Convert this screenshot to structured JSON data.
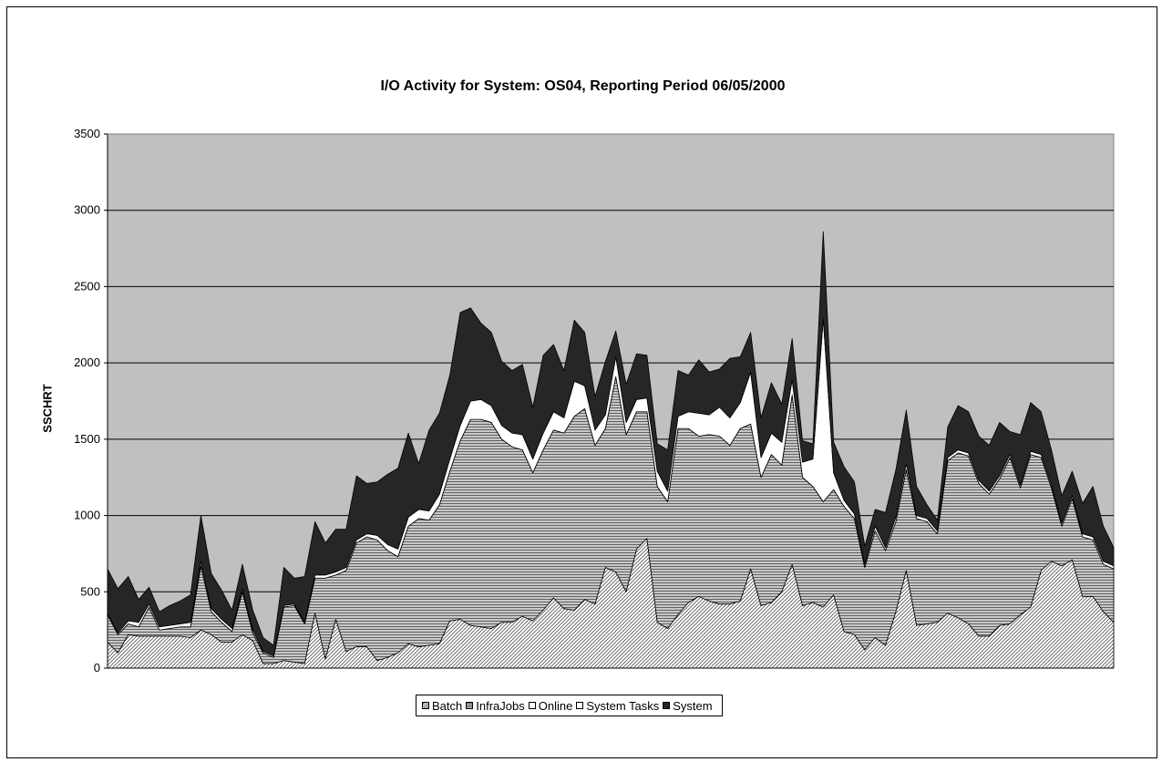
{
  "chart_data": {
    "type": "area",
    "stacked": true,
    "title": "I/O Activity for System: OS04, Reporting Period 06/05/2000",
    "xlabel": "",
    "ylabel": "SSCHRT",
    "ylim": [
      0,
      3500
    ],
    "yticks": [
      0,
      500,
      1000,
      1500,
      2000,
      2500,
      3000,
      3500
    ],
    "grid": true,
    "legend_position": "bottom",
    "series": [
      {
        "name": "Batch",
        "color": "#ffffff",
        "pattern": "diagonal",
        "values": [
          170,
          100,
          220,
          210,
          210,
          210,
          210,
          210,
          200,
          250,
          220,
          170,
          170,
          220,
          180,
          30,
          30,
          50,
          40,
          30,
          360,
          60,
          320,
          110,
          140,
          140,
          50,
          70,
          100,
          160,
          140,
          150,
          160,
          310,
          320,
          280,
          270,
          260,
          300,
          300,
          340,
          310,
          380,
          460,
          390,
          380,
          450,
          420,
          660,
          630,
          500,
          780,
          850,
          300,
          260,
          350,
          430,
          470,
          440,
          420,
          420,
          440,
          650,
          410,
          430,
          500,
          680,
          410,
          430,
          400,
          480,
          240,
          220,
          120,
          200,
          150,
          370,
          640,
          280,
          290,
          300,
          360,
          330,
          290,
          210,
          210,
          280,
          290,
          350,
          400,
          640,
          700,
          670,
          710,
          470,
          470,
          370,
          300
        ]
      },
      {
        "name": "InfraJobs",
        "color": "#bdbdbd",
        "pattern": "horizontal",
        "values": [
          180,
          120,
          70,
          60,
          190,
          40,
          50,
          60,
          70,
          420,
          150,
          130,
          70,
          280,
          50,
          70,
          40,
          350,
          370,
          260,
          230,
          530,
          290,
          530,
          680,
          720,
          790,
          700,
          630,
          770,
          840,
          820,
          910,
          980,
          1170,
          1350,
          1360,
          1350,
          1200,
          1150,
          1090,
          970,
          1050,
          1100,
          1150,
          1270,
          1250,
          1040,
          910,
          1280,
          1030,
          900,
          830,
          890,
          830,
          1220,
          1140,
          1050,
          1090,
          1100,
          1040,
          1130,
          950,
          840,
          970,
          830,
          1110,
          840,
          760,
          690,
          690,
          820,
          760,
          540,
          700,
          620,
          590,
          660,
          700,
          670,
          580,
          1000,
          1080,
          1100,
          1000,
          930,
          960,
          1090,
          830,
          1000,
          740,
          480,
          260,
          400,
          390,
          370,
          310,
          350
        ]
      },
      {
        "name": "Online",
        "color": "#ffffff",
        "pattern": "white",
        "values": [
          0,
          0,
          0,
          0,
          0,
          0,
          0,
          0,
          0,
          0,
          0,
          0,
          0,
          0,
          0,
          0,
          0,
          0,
          0,
          0,
          0,
          0,
          0,
          0,
          0,
          0,
          0,
          0,
          0,
          0,
          0,
          0,
          0,
          0,
          0,
          0,
          0,
          0,
          0,
          0,
          0,
          0,
          0,
          0,
          0,
          0,
          0,
          0,
          0,
          0,
          0,
          0,
          0,
          0,
          0,
          0,
          0,
          0,
          0,
          0,
          0,
          0,
          0,
          0,
          0,
          0,
          0,
          0,
          0,
          0,
          0,
          0,
          0,
          0,
          0,
          0,
          0,
          0,
          0,
          0,
          0,
          0,
          0,
          0,
          0,
          0,
          0,
          0,
          0,
          0,
          0,
          0,
          0,
          0,
          0,
          0,
          0,
          0
        ]
      },
      {
        "name": "System Tasks",
        "color": "#ffffff",
        "pattern": "white",
        "values": [
          10,
          10,
          20,
          30,
          20,
          20,
          20,
          20,
          30,
          30,
          20,
          20,
          20,
          20,
          20,
          10,
          10,
          10,
          10,
          10,
          20,
          20,
          20,
          20,
          20,
          20,
          30,
          40,
          50,
          60,
          60,
          60,
          70,
          80,
          100,
          120,
          130,
          110,
          90,
          90,
          100,
          90,
          110,
          120,
          100,
          230,
          150,
          100,
          90,
          130,
          80,
          80,
          90,
          100,
          70,
          80,
          110,
          150,
          130,
          190,
          180,
          170,
          340,
          130,
          140,
          150,
          100,
          100,
          180,
          1200,
          110,
          40,
          30,
          20,
          30,
          20,
          30,
          40,
          20,
          20,
          20,
          20,
          20,
          20,
          20,
          20,
          20,
          20,
          20,
          20,
          20,
          20,
          20,
          20,
          20,
          20,
          20,
          20
        ]
      },
      {
        "name": "System",
        "color": "#262626",
        "pattern": "solid",
        "values": [
          290,
          290,
          290,
          150,
          110,
          100,
          130,
          150,
          180,
          300,
          230,
          190,
          120,
          160,
          130,
          90,
          70,
          250,
          170,
          300,
          350,
          210,
          280,
          250,
          420,
          330,
          350,
          460,
          530,
          550,
          300,
          530,
          530,
          550,
          740,
          610,
          500,
          480,
          420,
          410,
          460,
          340,
          510,
          440,
          310,
          400,
          350,
          220,
          350,
          170,
          250,
          300,
          280,
          180,
          270,
          300,
          240,
          350,
          280,
          250,
          390,
          300,
          260,
          260,
          330,
          250,
          270,
          140,
          100,
          570,
          200,
          220,
          210,
          120,
          110,
          230,
          310,
          350,
          190,
          90,
          70,
          200,
          290,
          270,
          290,
          300,
          350,
          150,
          330,
          320,
          280,
          230,
          180,
          160,
          200,
          330,
          230,
          120
        ]
      }
    ]
  }
}
